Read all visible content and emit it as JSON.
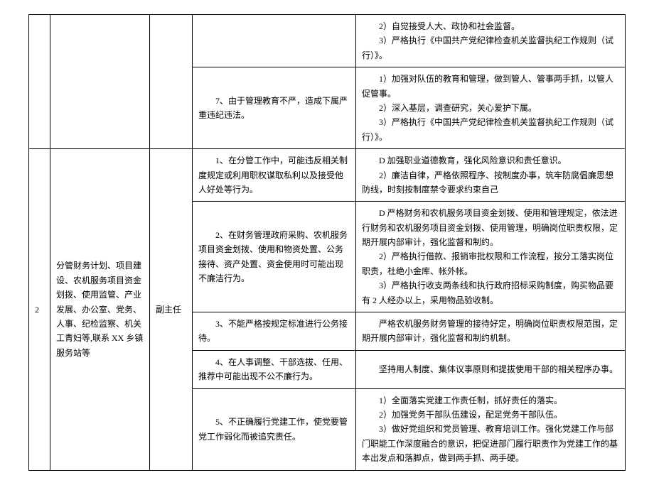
{
  "rows": [
    {
      "num": "",
      "dept": "",
      "role": "",
      "risk": "",
      "measure": "　　2）自觉接受人大、政协和社会监督。\n　　3）严格执行《中国共产党纪律检查机关监督执纪工作规则（试行）》。"
    },
    {
      "num": "",
      "dept": "",
      "role": "",
      "risk": "　　7、由于管理教育不严，造成下属严重违纪违法。",
      "measure": "　　1）加强对队伍的教育和管理，做到管人、管事两手抓，以管人促管事。\n　　2）深入基层，调查研究，关心爱护下属。\n　　3）严格执行《中国共产党纪律检查机关监督执纪工作规则（试行）》。"
    },
    {
      "num": "2",
      "dept": "分管财务计划、项目建设、农机服务项目资金划拨、使用监管、产业发展、办公室、党务、人事、纪检监察、机关工青妇等,联系 XX 乡镇服务站等",
      "role": "副主任",
      "risk": "　　1、在分管工作中，可能违反相关制度规定或利用职权谋取私利以及接受他人好处等行为。",
      "measure": "　　D 加强职业道德教育，强化风险意识和责任意识。\n　　2）廉洁自律，严格依照程序、按制度办事，筑牢防腐倡廉思想防线，时刻按制度禁令要求约束自己"
    },
    {
      "risk": "　　2、在财务管理政府采购、农机服务项目资金划拨、使用和物资处置、公务接待、资产处置、资金使用时可能出现不廉洁行为。",
      "measure": "　　D 严格财务和农机服务项目资金划拨、使用和管理规定，依法进行财务和农机服务项目资金划拨、使用管理，明确岗位职责权限，定期开展内部审计，强化监督和制约。\n　　2）严格执行借款、报销审批权限和工作流程，按分工落实岗位职责，杜绝小金库、帐外帐。\n　　3）严格执行收支两条线和执行政府招标采购制度，购买物品要有 2 人经办以上，采用物品验收制。"
    },
    {
      "risk": "　　3、不能严格按规定标准进行公务接待。",
      "measure": "　　严格农机服务财务管理的接待好定，明确岗位职责权限范围，定期开展内部审计，强化监督和制约机制。"
    },
    {
      "risk": "　　4、在人事调整、干部选拔、任用、推荐中可能出现不公不廉行为。",
      "measure": "　　坚持用人制度、集体议事原则和提拔使用干部的相关程序办事。"
    },
    {
      "risk": "　　5、不正确履行党建工作，使党要管党工作弱化而被追究责任。",
      "measure": "　　1）全面落实党建工作责任制，抓好责任的落实。\n　　2）加强党务干部队伍建设，配足党务干部队伍。\n　　3）做好党组织和党员管理、教育培训工作。强化党建工作与部门职能工作深度融合的意识，把促进部门履行职责作为党建工作的基本出发点和落脚点，做到两手抓、两手硬。"
    }
  ]
}
